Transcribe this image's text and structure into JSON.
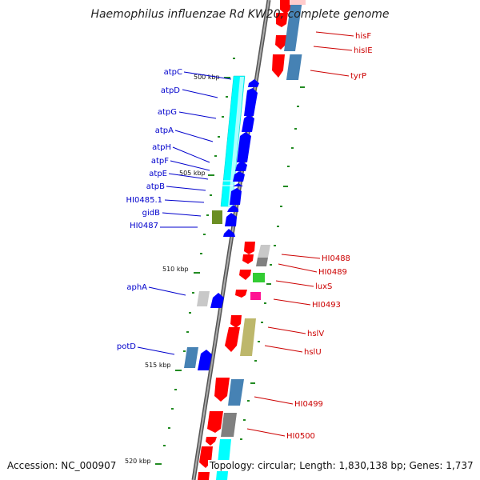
{
  "title": "Haemophilus influenzae Rd KW20, complete genome",
  "accession": "Accession: NC_000907",
  "topology": "Topology: circular; Length: 1,830,138 bp; Genes: 1,737",
  "ticks": [
    "500 kbp",
    "505 kbp",
    "510 kbp",
    "515 kbp",
    "520 kbp"
  ],
  "left_genes": [
    "atpC",
    "atpD",
    "atpG",
    "atpA",
    "atpH",
    "atpF",
    "atpE",
    "atpB",
    "HI0485.1",
    "gidB",
    "HI0487",
    "aphA",
    "potD"
  ],
  "right_genes": [
    "hisF",
    "hisIE",
    "tyrP",
    "HI0488",
    "HI0489",
    "luxS",
    "HI0493",
    "hslV",
    "hslU",
    "HI0499",
    "HI0500"
  ],
  "colors": {
    "left_label": "#0000cc",
    "right_label": "#cc0000",
    "forward_cds": "#0000ff",
    "reverse_cds": "#ff0000",
    "atp_operon": "#00ffff",
    "backbone": "#888888",
    "tick": "#228b22"
  }
}
